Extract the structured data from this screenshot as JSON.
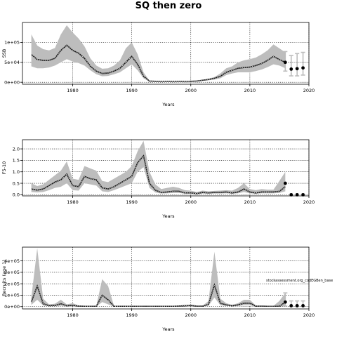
{
  "title": "SQ then zero",
  "chart_data": [
    {
      "type": "line",
      "ylabel": "SSB",
      "xlabel": "Years",
      "xlim": [
        1971.5,
        2020
      ],
      "ylim": [
        -5000,
        150000
      ],
      "x_ticks": [
        1980,
        1990,
        2000,
        2010,
        2020
      ],
      "y_ticks": [
        {
          "v": 0,
          "label": "0e+00"
        },
        {
          "v": 50000,
          "label": "5e+04"
        },
        {
          "v": 100000,
          "label": "1e+05"
        }
      ],
      "grid": true,
      "series": [
        {
          "years": [
            1973,
            1974,
            1975,
            1976,
            1977,
            1978,
            1979,
            1980,
            1981,
            1982,
            1983,
            1984,
            1985,
            1986,
            1987,
            1988,
            1989,
            1990,
            1991,
            1992,
            1993,
            1994,
            1995,
            1996,
            1997,
            1998,
            1999,
            2000,
            2001,
            2002,
            2003,
            2004,
            2005,
            2006,
            2007,
            2008,
            2009,
            2010,
            2011,
            2012,
            2013,
            2014,
            2015,
            2016
          ],
          "median": [
            70000,
            57000,
            55000,
            55000,
            60000,
            80000,
            93000,
            80000,
            73000,
            60000,
            40000,
            28000,
            22000,
            23000,
            28000,
            35000,
            50000,
            65000,
            45000,
            15000,
            3000,
            2500,
            2500,
            2500,
            2500,
            2500,
            2500,
            2500,
            3000,
            5000,
            7000,
            10000,
            15000,
            25000,
            30000,
            35000,
            37000,
            38000,
            42000,
            47000,
            55000,
            65000,
            57000,
            50000
          ],
          "upper": [
            120000,
            92000,
            83000,
            80000,
            86000,
            120000,
            143000,
            125000,
            110000,
            90000,
            60000,
            42000,
            34000,
            35000,
            42000,
            55000,
            85000,
            100000,
            70000,
            25000,
            4000,
            3000,
            3000,
            3000,
            3000,
            3000,
            3000,
            3000,
            4000,
            6000,
            9000,
            13000,
            22000,
            35000,
            40000,
            50000,
            55000,
            58000,
            62000,
            70000,
            80000,
            95000,
            85000,
            75000
          ],
          "lower": [
            40000,
            35000,
            35000,
            37000,
            42000,
            50000,
            58000,
            52000,
            48000,
            42000,
            30000,
            20000,
            15000,
            16000,
            20000,
            25000,
            35000,
            45000,
            30000,
            10000,
            2000,
            2000,
            2000,
            2000,
            2000,
            2000,
            2000,
            2000,
            2000,
            3500,
            5000,
            7000,
            10000,
            18000,
            22000,
            25000,
            25000,
            25000,
            28000,
            32000,
            38000,
            45000,
            42000,
            35000
          ]
        }
      ],
      "projection": {
        "years": [
          2016,
          2017,
          2018,
          2019
        ],
        "values": [
          50000,
          33000,
          34000,
          36000
        ],
        "upper": [
          77000,
          67000,
          72000,
          75000
        ],
        "lower": [
          28000,
          16000,
          16000,
          18000
        ]
      }
    },
    {
      "type": "line",
      "ylabel": "F5-10",
      "xlabel": "Years",
      "xlim": [
        1971.5,
        2020
      ],
      "ylim": [
        -0.05,
        2.4
      ],
      "x_ticks": [
        1980,
        1990,
        2000,
        2010,
        2020
      ],
      "y_ticks": [
        {
          "v": 0,
          "label": "0.0"
        },
        {
          "v": 0.5,
          "label": "0.5"
        },
        {
          "v": 1.0,
          "label": "1.0"
        },
        {
          "v": 1.5,
          "label": "1.5"
        },
        {
          "v": 2.0,
          "label": "2.0"
        }
      ],
      "grid": true,
      "series": [
        {
          "years": [
            1973,
            1974,
            1975,
            1976,
            1977,
            1978,
            1979,
            1980,
            1981,
            1982,
            1983,
            1984,
            1985,
            1986,
            1987,
            1988,
            1989,
            1990,
            1991,
            1992,
            1993,
            1994,
            1995,
            1996,
            1997,
            1998,
            1999,
            2000,
            2001,
            2002,
            2003,
            2004,
            2005,
            2006,
            2007,
            2008,
            2009,
            2010,
            2011,
            2012,
            2013,
            2014,
            2015,
            2016
          ],
          "median": [
            0.25,
            0.2,
            0.25,
            0.4,
            0.55,
            0.65,
            0.9,
            0.4,
            0.35,
            0.8,
            0.7,
            0.65,
            0.3,
            0.25,
            0.35,
            0.5,
            0.65,
            0.8,
            1.4,
            1.7,
            0.5,
            0.2,
            0.1,
            0.12,
            0.15,
            0.15,
            0.08,
            0.08,
            0.05,
            0.1,
            0.08,
            0.1,
            0.1,
            0.12,
            0.08,
            0.12,
            0.25,
            0.12,
            0.08,
            0.12,
            0.12,
            0.12,
            0.15,
            0.35
          ],
          "upper": [
            0.5,
            0.38,
            0.45,
            0.65,
            0.85,
            1.05,
            1.45,
            0.7,
            0.65,
            1.25,
            1.15,
            1.05,
            0.6,
            0.55,
            0.7,
            0.85,
            1.0,
            1.25,
            1.9,
            2.35,
            1.0,
            0.45,
            0.25,
            0.3,
            0.35,
            0.3,
            0.2,
            0.18,
            0.12,
            0.18,
            0.15,
            0.17,
            0.18,
            0.2,
            0.18,
            0.3,
            0.5,
            0.25,
            0.2,
            0.25,
            0.22,
            0.22,
            0.6,
            1.0
          ],
          "lower": [
            0.12,
            0.1,
            0.12,
            0.2,
            0.3,
            0.35,
            0.5,
            0.2,
            0.18,
            0.5,
            0.45,
            0.4,
            0.15,
            0.12,
            0.2,
            0.3,
            0.4,
            0.5,
            1.0,
            1.2,
            0.3,
            0.1,
            0.05,
            0.06,
            0.08,
            0.08,
            0.04,
            0.04,
            0.02,
            0.05,
            0.04,
            0.05,
            0.05,
            0.06,
            0.04,
            0.06,
            0.12,
            0.06,
            0.04,
            0.06,
            0.06,
            0.06,
            0.08,
            0.15
          ]
        }
      ],
      "projection": {
        "years": [
          2016,
          2017,
          2018,
          2019
        ],
        "values": [
          0.5,
          0,
          0,
          0
        ]
      }
    },
    {
      "type": "line",
      "ylabel": "Recruits (age 1)",
      "xlabel": "Years",
      "xlim": [
        1971.5,
        2020
      ],
      "ylim": [
        -20000,
        520000
      ],
      "x_ticks": [
        1980,
        1990,
        2000,
        2010,
        2020
      ],
      "y_ticks": [
        {
          "v": 0,
          "label": "0e+00"
        },
        {
          "v": 100000,
          "label": "1e+05"
        },
        {
          "v": 200000,
          "label": "2e+05"
        },
        {
          "v": 300000,
          "label": "3e+05"
        },
        {
          "v": 400000,
          "label": "4e+05"
        }
      ],
      "grid": true,
      "series": [
        {
          "years": [
            1973,
            1974,
            1975,
            1976,
            1977,
            1978,
            1979,
            1980,
            1981,
            1982,
            1983,
            1984,
            1985,
            1986,
            1987,
            1988,
            1989,
            1990,
            1991,
            1992,
            1993,
            1994,
            1995,
            1996,
            1997,
            1998,
            1999,
            2000,
            2001,
            2002,
            2003,
            2004,
            2005,
            2006,
            2007,
            2008,
            2009,
            2010,
            2011,
            2012,
            2013,
            2014,
            2015,
            2016
          ],
          "median": [
            40000,
            180000,
            25000,
            8000,
            10000,
            25000,
            8000,
            12000,
            5000,
            3000,
            3000,
            3000,
            100000,
            60000,
            3000,
            3000,
            3000,
            3000,
            3000,
            3000,
            3000,
            3000,
            3000,
            3000,
            3000,
            5000,
            8000,
            10000,
            5000,
            4000,
            20000,
            190000,
            30000,
            15000,
            8000,
            15000,
            30000,
            30000,
            5000,
            4000,
            3000,
            3000,
            3000,
            40000
          ],
          "upper": [
            80000,
            510000,
            70000,
            20000,
            25000,
            60000,
            20000,
            30000,
            10000,
            5000,
            5000,
            5000,
            240000,
            180000,
            6000,
            5000,
            5000,
            5000,
            5000,
            5000,
            5000,
            5000,
            5000,
            5000,
            5000,
            9000,
            14000,
            16000,
            9000,
            7000,
            50000,
            480000,
            70000,
            30000,
            15000,
            30000,
            60000,
            60000,
            10000,
            7000,
            6000,
            6000,
            50000,
            120000
          ],
          "lower": [
            15000,
            60000,
            10000,
            3000,
            4000,
            8000,
            3000,
            4000,
            2000,
            1000,
            1000,
            1000,
            40000,
            20000,
            1000,
            1000,
            1000,
            1000,
            1000,
            1000,
            1000,
            1000,
            1000,
            1000,
            1000,
            2000,
            3000,
            4000,
            2000,
            2000,
            8000,
            80000,
            12000,
            6000,
            3000,
            6000,
            12000,
            12000,
            2000,
            2000,
            1000,
            1000,
            1000,
            5000
          ]
        }
      ],
      "projection": {
        "years": [
          2016,
          2017,
          2018,
          2019
        ],
        "values": [
          40000,
          8000,
          8000,
          8000
        ],
        "upper": [
          120000,
          50000,
          50000,
          50000
        ],
        "lower": [
          5000,
          2000,
          2000,
          2000
        ]
      },
      "legend": "stockassessment.org_codEGBen_base"
    }
  ]
}
